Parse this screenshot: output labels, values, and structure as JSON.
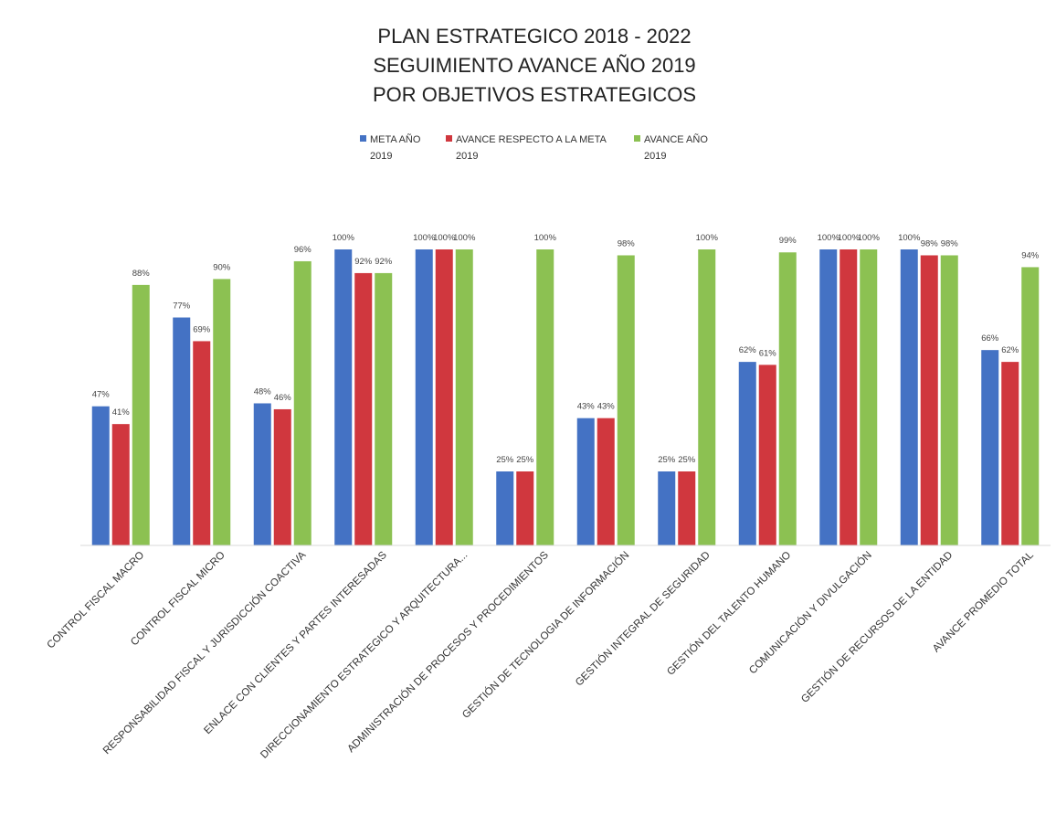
{
  "chart_data": {
    "type": "bar",
    "title": [
      "PLAN ESTRATEGICO 2018 - 2022",
      "SEGUIMIENTO AVANCE AÑO 2019",
      "POR OBJETIVOS ESTRATEGICOS"
    ],
    "xlabel": "",
    "ylabel": "",
    "ylim": [
      0,
      1
    ],
    "grid": false,
    "legend_position": "top",
    "categories": [
      "CONTROL FISCAL MACRO",
      "CONTROL FISCAL MICRO",
      "RESPONSABILIDAD FISCAL Y JURISDICCIÓN COACTIVA",
      "ENLACE CON CLIENTES Y PARTES INTERESADAS",
      "DIRECCIONAMIENTO ESTRATEGICO Y ARQUITECTURA...",
      "ADMINISTRACIÓN DE PROCESOS Y PROCEDIMIENTOS",
      "GESTIÓN DE TECNOLOGIA DE INFORMACIÓN",
      "GESTIÓN INTEGRAL DE SEGURIDAD",
      "GESTIÓN DEL TALENTO HUMANO",
      "COMUNICACIÓN Y DIVULGACIÓN",
      "GESTIÓN DE RECURSOS DE LA ENTIDAD",
      "AVANCE PROMEDIO TOTAL"
    ],
    "series": [
      {
        "name_lines": [
          "META AÑO",
          "2019"
        ],
        "color": "#4472C4",
        "values": [
          0.47,
          0.77,
          0.48,
          1.0,
          1.0,
          0.25,
          0.43,
          0.25,
          0.62,
          1.0,
          1.0,
          0.66
        ],
        "labels": [
          "47%",
          "77%",
          "48%",
          "100%",
          "100%",
          "25%",
          "43%",
          "25%",
          "62%",
          "100%",
          "100%",
          "66%"
        ]
      },
      {
        "name_lines": [
          "AVANCE RESPECTO A LA META",
          "2019"
        ],
        "color": "#D0373E",
        "values": [
          0.41,
          0.69,
          0.46,
          0.92,
          1.0,
          0.25,
          0.43,
          0.25,
          0.61,
          1.0,
          0.98,
          0.62
        ],
        "labels": [
          "41%",
          "69%",
          "46%",
          "92%",
          "100%",
          "25%",
          "43%",
          "25%",
          "61%",
          "100%",
          "98%",
          "62%"
        ]
      },
      {
        "name_lines": [
          "AVANCE AÑO",
          "2019"
        ],
        "color": "#8CC152",
        "values": [
          0.88,
          0.9,
          0.96,
          0.92,
          1.0,
          1.0,
          0.98,
          1.0,
          0.99,
          1.0,
          0.98,
          0.94
        ],
        "labels": [
          "88%",
          "90%",
          "96%",
          "92%",
          "100%",
          "100%",
          "98%",
          "100%",
          "99%",
          "100%",
          "98%",
          "94%"
        ]
      }
    ]
  }
}
